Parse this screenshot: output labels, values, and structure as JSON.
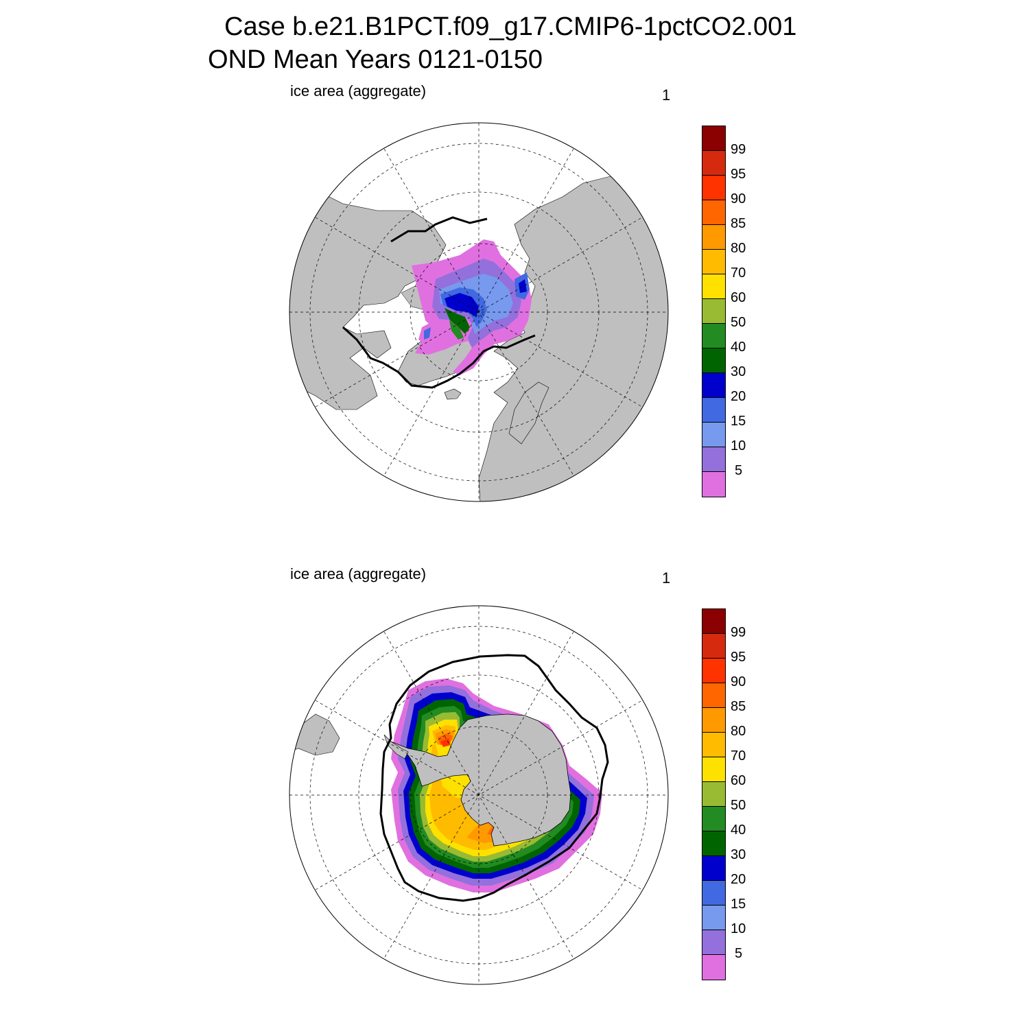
{
  "title": "Case b.e21.B1PCT.f09_g17.CMIP6-1pctCO2.001",
  "subtitle": "OND Mean   Years 0121-0150",
  "panels": [
    {
      "hemisphere": "north",
      "label": "ice area  (aggregate)",
      "units": "1"
    },
    {
      "hemisphere": "south",
      "label": "ice area  (aggregate)",
      "units": "1"
    }
  ],
  "colorbar": {
    "levels": [
      "99",
      "95",
      "90",
      "85",
      "80",
      "70",
      "60",
      "50",
      "40",
      "30",
      "20",
      "15",
      "10",
      "5"
    ],
    "colors": [
      "#8b0000",
      "#d62a0f",
      "#ff3300",
      "#ff6600",
      "#ff9900",
      "#ffbb00",
      "#ffe100",
      "#99bb33",
      "#228b22",
      "#006400",
      "#0000cd",
      "#4169e1",
      "#7799ee",
      "#9370db",
      "#e070e0"
    ]
  },
  "colors": {
    "land": "#bfbfbf",
    "ocean": "#ffffff",
    "ice_edge_line": "#000000"
  }
}
